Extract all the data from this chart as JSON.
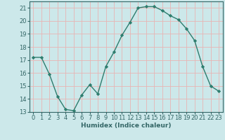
{
  "x": [
    0,
    1,
    2,
    3,
    4,
    5,
    6,
    7,
    8,
    9,
    10,
    11,
    12,
    13,
    14,
    15,
    16,
    17,
    18,
    19,
    20,
    21,
    22,
    23
  ],
  "y": [
    17.2,
    17.2,
    15.9,
    14.2,
    13.2,
    13.1,
    14.3,
    15.1,
    14.4,
    16.5,
    17.6,
    18.9,
    19.9,
    21.0,
    21.1,
    21.1,
    20.8,
    20.4,
    20.1,
    19.4,
    18.5,
    16.5,
    15.0,
    14.6
  ],
  "line_color": "#2e7d6e",
  "marker": "D",
  "marker_size": 2.2,
  "bg_color": "#cce8ea",
  "grid_color": "#e8b4b4",
  "xlabel": "Humidex (Indice chaleur)",
  "ylim": [
    13,
    21.5
  ],
  "xlim": [
    -0.5,
    23.5
  ],
  "yticks": [
    13,
    14,
    15,
    16,
    17,
    18,
    19,
    20,
    21
  ],
  "xticks": [
    0,
    1,
    2,
    3,
    4,
    5,
    6,
    7,
    8,
    9,
    10,
    11,
    12,
    13,
    14,
    15,
    16,
    17,
    18,
    19,
    20,
    21,
    22,
    23
  ],
  "label_fontsize": 6.5,
  "tick_fontsize": 6.0,
  "line_width": 1.0,
  "spine_color": "#336666"
}
